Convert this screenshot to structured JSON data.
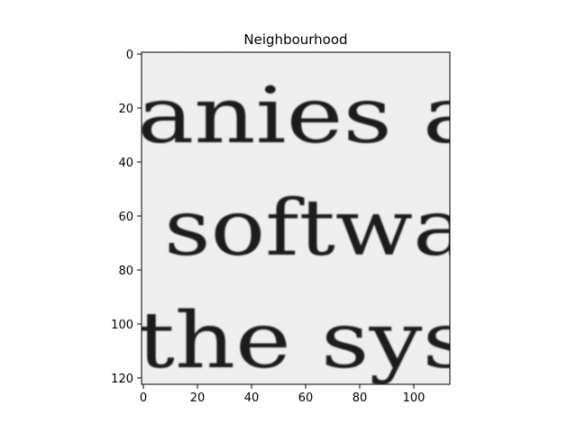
{
  "figure": {
    "title": "Neighbourhood",
    "image_text": {
      "line1": "anies a",
      "line2": "softwa",
      "line3": "the sys"
    },
    "x_ticks": [
      "0",
      "20",
      "40",
      "60",
      "80",
      "100"
    ],
    "y_ticks": [
      "0",
      "20",
      "40",
      "60",
      "80",
      "100",
      "120"
    ],
    "colors": {
      "paper": "#eeeeee",
      "ink": "#1a1a1a",
      "axis": "#000000"
    }
  }
}
